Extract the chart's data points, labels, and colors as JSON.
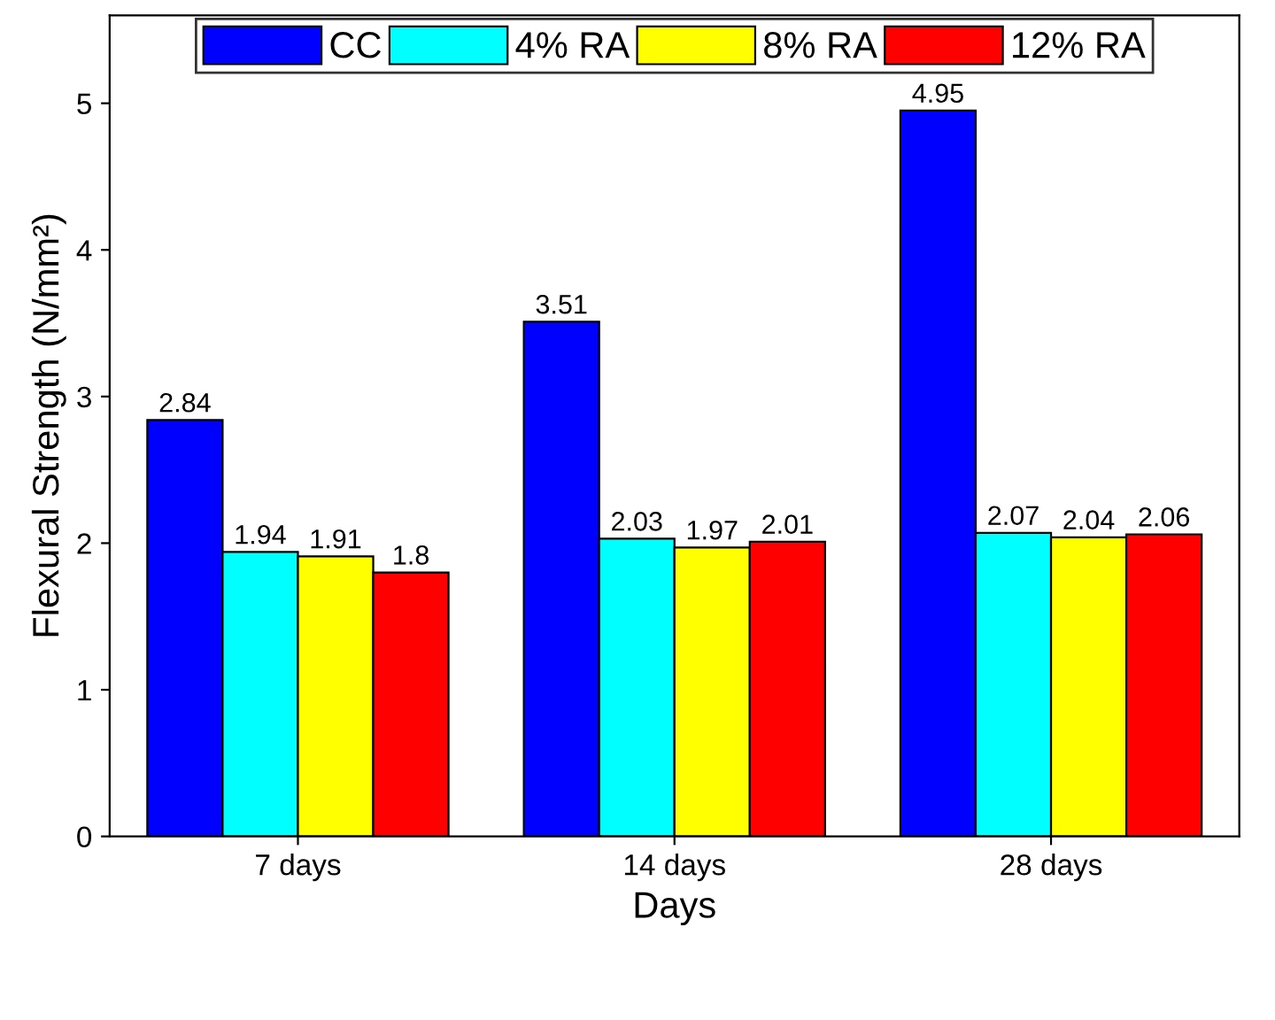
{
  "chart_data": {
    "type": "bar",
    "xlabel": "Days",
    "ylabel": "Flexural Strength (N/mm²)",
    "categories": [
      "7 days",
      "14 days",
      "28 days"
    ],
    "series": [
      {
        "name": "CC",
        "color": "#0000ff",
        "values": [
          2.84,
          3.51,
          4.95
        ]
      },
      {
        "name": "4% RA",
        "color": "#00ffff",
        "values": [
          1.94,
          2.03,
          2.07
        ]
      },
      {
        "name": "8% RA",
        "color": "#ffff00",
        "values": [
          1.91,
          1.97,
          2.04
        ]
      },
      {
        "name": "12% RA",
        "color": "#ff0000",
        "values": [
          1.8,
          2.01,
          2.06
        ]
      }
    ],
    "ylim": [
      0,
      5.6
    ],
    "yticks": [
      0,
      1,
      2,
      3,
      4,
      5
    ],
    "grid": false,
    "legend": "top",
    "data_labels": true
  }
}
